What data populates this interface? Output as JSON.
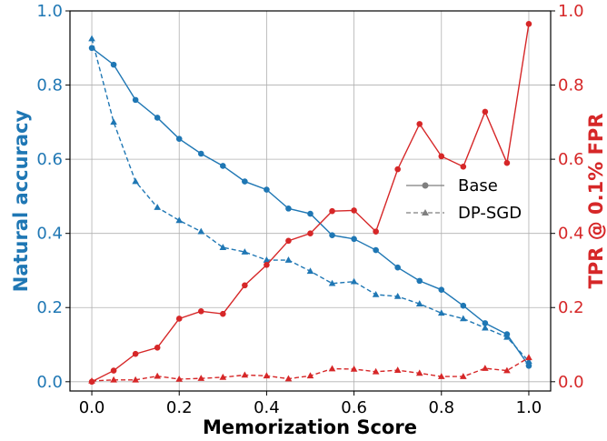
{
  "chart_data": {
    "type": "line",
    "xlabel": "Memorization Score",
    "ylabel_left": "Natural accuracy",
    "ylabel_right": "TPR @ 0.1% FPR",
    "xlim": [
      -0.05,
      1.05
    ],
    "ylim_left": [
      -0.025,
      1.0
    ],
    "ylim_right": [
      -0.025,
      1.0
    ],
    "x_ticks": [
      "0.0",
      "0.2",
      "0.4",
      "0.6",
      "0.8",
      "1.0"
    ],
    "y_ticks_left": [
      "0.0",
      "0.2",
      "0.4",
      "0.6",
      "0.8",
      "1.0"
    ],
    "y_ticks_right": [
      "0.0",
      "0.2",
      "0.4",
      "0.6",
      "0.8",
      "1.0"
    ],
    "grid": true,
    "legend_position": "center-right",
    "legend": [
      {
        "name": "Base",
        "marker": "circle",
        "dash": "solid"
      },
      {
        "name": "DP-SGD",
        "marker": "triangle",
        "dash": "dashed"
      }
    ],
    "colors": {
      "left_axis": "#1f77b4",
      "right_axis": "#d62728",
      "legend": "#7f7f7f"
    },
    "x": [
      0.0,
      0.05,
      0.1,
      0.15,
      0.2,
      0.25,
      0.3,
      0.35,
      0.4,
      0.45,
      0.5,
      0.55,
      0.6,
      0.65,
      0.7,
      0.75,
      0.8,
      0.85,
      0.9,
      0.95,
      1.0
    ],
    "series": [
      {
        "name": "Base",
        "axis": "left",
        "color": "#1f77b4",
        "marker": "circle",
        "dash": "solid",
        "values": [
          0.9,
          0.855,
          0.76,
          0.712,
          0.655,
          0.615,
          0.582,
          0.54,
          0.518,
          0.467,
          0.453,
          0.395,
          0.385,
          0.355,
          0.308,
          0.272,
          0.248,
          0.205,
          0.158,
          0.128,
          0.043
        ]
      },
      {
        "name": "DP-SGD",
        "axis": "left",
        "color": "#1f77b4",
        "marker": "triangle",
        "dash": "dashed",
        "values": [
          0.925,
          0.7,
          0.54,
          0.47,
          0.435,
          0.405,
          0.362,
          0.35,
          0.328,
          0.328,
          0.298,
          0.265,
          0.27,
          0.235,
          0.23,
          0.21,
          0.185,
          0.17,
          0.145,
          0.12,
          0.055
        ]
      },
      {
        "name": "Base",
        "axis": "right",
        "color": "#d62728",
        "marker": "circle",
        "dash": "solid",
        "values": [
          0.0,
          0.03,
          0.075,
          0.092,
          0.17,
          0.19,
          0.183,
          0.26,
          0.315,
          0.38,
          0.4,
          0.46,
          0.462,
          0.405,
          0.573,
          0.695,
          0.608,
          0.58,
          0.728,
          0.59,
          0.965
        ]
      },
      {
        "name": "DP-SGD",
        "axis": "right",
        "color": "#d62728",
        "marker": "triangle",
        "dash": "dashed",
        "values": [
          0.002,
          0.005,
          0.005,
          0.015,
          0.007,
          0.009,
          0.012,
          0.018,
          0.016,
          0.008,
          0.016,
          0.035,
          0.034,
          0.027,
          0.031,
          0.023,
          0.014,
          0.014,
          0.036,
          0.03,
          0.065
        ]
      }
    ]
  }
}
